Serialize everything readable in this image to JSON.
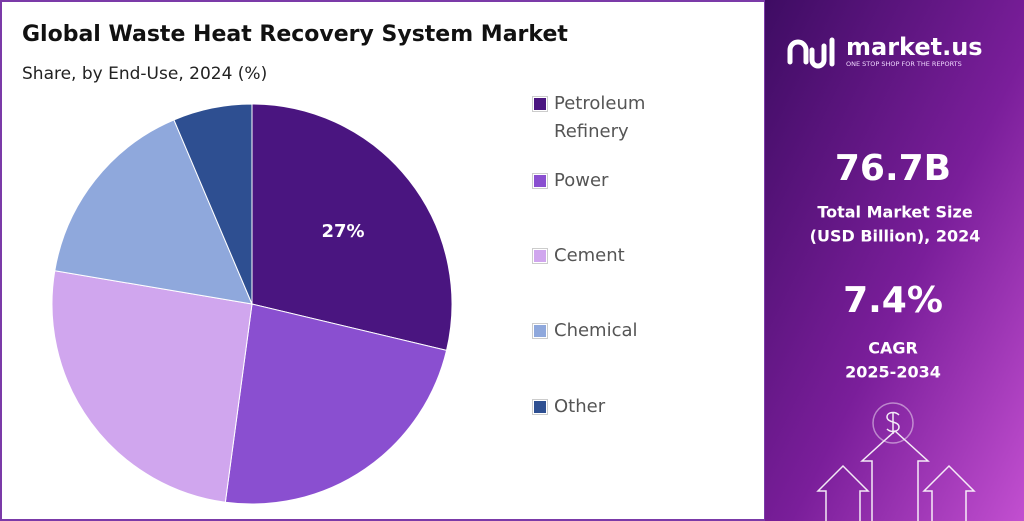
{
  "chart_data": {
    "type": "pie",
    "title": "Global Waste Heat Recovery System Market",
    "subtitle": "Share, by End-Use, 2024 (%)",
    "categories": [
      "Petroleum Refinery",
      "Power",
      "Cement",
      "Chemical",
      "Other"
    ],
    "values": [
      27,
      22,
      24,
      15,
      6
    ],
    "value_labels": [
      "27%",
      null,
      null,
      null,
      null
    ],
    "colors": [
      "#4a1580",
      "#8a4fd0",
      "#d0a6ee",
      "#8fa8dc",
      "#2e4f91"
    ],
    "legend": "right"
  },
  "brand": {
    "name": "market.us",
    "tagline": "ONE STOP SHOP FOR THE REPORTS"
  },
  "stats": {
    "market_size": "76.7B",
    "market_size_label_1": "Total Market Size",
    "market_size_label_2": "(USD Billion), 2024",
    "cagr": "7.4%",
    "cagr_label": "CAGR",
    "cagr_period": "2025-2034"
  }
}
